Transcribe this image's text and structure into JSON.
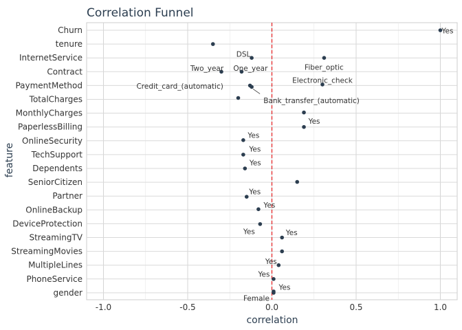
{
  "chart_data": {
    "type": "scatter",
    "title": "Correlation Funnel",
    "xlabel": "correlation",
    "ylabel": "feature",
    "xlim": [
      -1.1,
      1.1
    ],
    "x_ticks": [
      "-1.0",
      "-0.5",
      "0.0",
      "0.5",
      "1.0"
    ],
    "reference_line": {
      "x": 0,
      "color": "#e31a1c",
      "style": "dashed"
    },
    "grid": true,
    "point_color": "#2c3e50",
    "features": [
      "Churn",
      "tenure",
      "InternetService",
      "Contract",
      "PaymentMethod",
      "TotalCharges",
      "MonthlyCharges",
      "PaperlessBilling",
      "OnlineSecurity",
      "TechSupport",
      "Dependents",
      "SeniorCitizen",
      "Partner",
      "OnlineBackup",
      "DeviceProtection",
      "StreamingTV",
      "StreamingMovies",
      "MultipleLines",
      "PhoneService",
      "gender"
    ],
    "points": [
      {
        "feature": "Churn",
        "x": 1.0,
        "label": "Yes"
      },
      {
        "feature": "tenure",
        "x": -0.35,
        "label": ""
      },
      {
        "feature": "InternetService",
        "x": 0.31,
        "label": "Fiber_optic"
      },
      {
        "feature": "InternetService",
        "x": -0.12,
        "label": "DSL"
      },
      {
        "feature": "Contract",
        "x": -0.3,
        "label": "Two_year"
      },
      {
        "feature": "Contract",
        "x": -0.18,
        "label": "One_year"
      },
      {
        "feature": "PaymentMethod",
        "x": 0.3,
        "label": "Electronic_check"
      },
      {
        "feature": "PaymentMethod",
        "x": -0.13,
        "label": "Credit_card_(automatic)"
      },
      {
        "feature": "PaymentMethod",
        "x": -0.12,
        "label": "Bank_transfer_(automatic)"
      },
      {
        "feature": "TotalCharges",
        "x": -0.2,
        "label": ""
      },
      {
        "feature": "MonthlyCharges",
        "x": 0.19,
        "label": ""
      },
      {
        "feature": "PaperlessBilling",
        "x": 0.19,
        "label": "Yes"
      },
      {
        "feature": "OnlineSecurity",
        "x": -0.17,
        "label": "Yes"
      },
      {
        "feature": "TechSupport",
        "x": -0.17,
        "label": "Yes"
      },
      {
        "feature": "Dependents",
        "x": -0.16,
        "label": "Yes"
      },
      {
        "feature": "SeniorCitizen",
        "x": 0.15,
        "label": ""
      },
      {
        "feature": "Partner",
        "x": -0.15,
        "label": "Yes"
      },
      {
        "feature": "OnlineBackup",
        "x": -0.08,
        "label": "Yes"
      },
      {
        "feature": "DeviceProtection",
        "x": -0.07,
        "label": "Yes"
      },
      {
        "feature": "StreamingTV",
        "x": 0.06,
        "label": "Yes"
      },
      {
        "feature": "StreamingMovies",
        "x": 0.06,
        "label": ""
      },
      {
        "feature": "MultipleLines",
        "x": 0.04,
        "label": "Yes"
      },
      {
        "feature": "PhoneService",
        "x": 0.01,
        "label": "Yes"
      },
      {
        "feature": "gender",
        "x": 0.01,
        "label": "Yes"
      },
      {
        "feature": "gender",
        "x": 0.01,
        "label": "Female"
      }
    ]
  }
}
